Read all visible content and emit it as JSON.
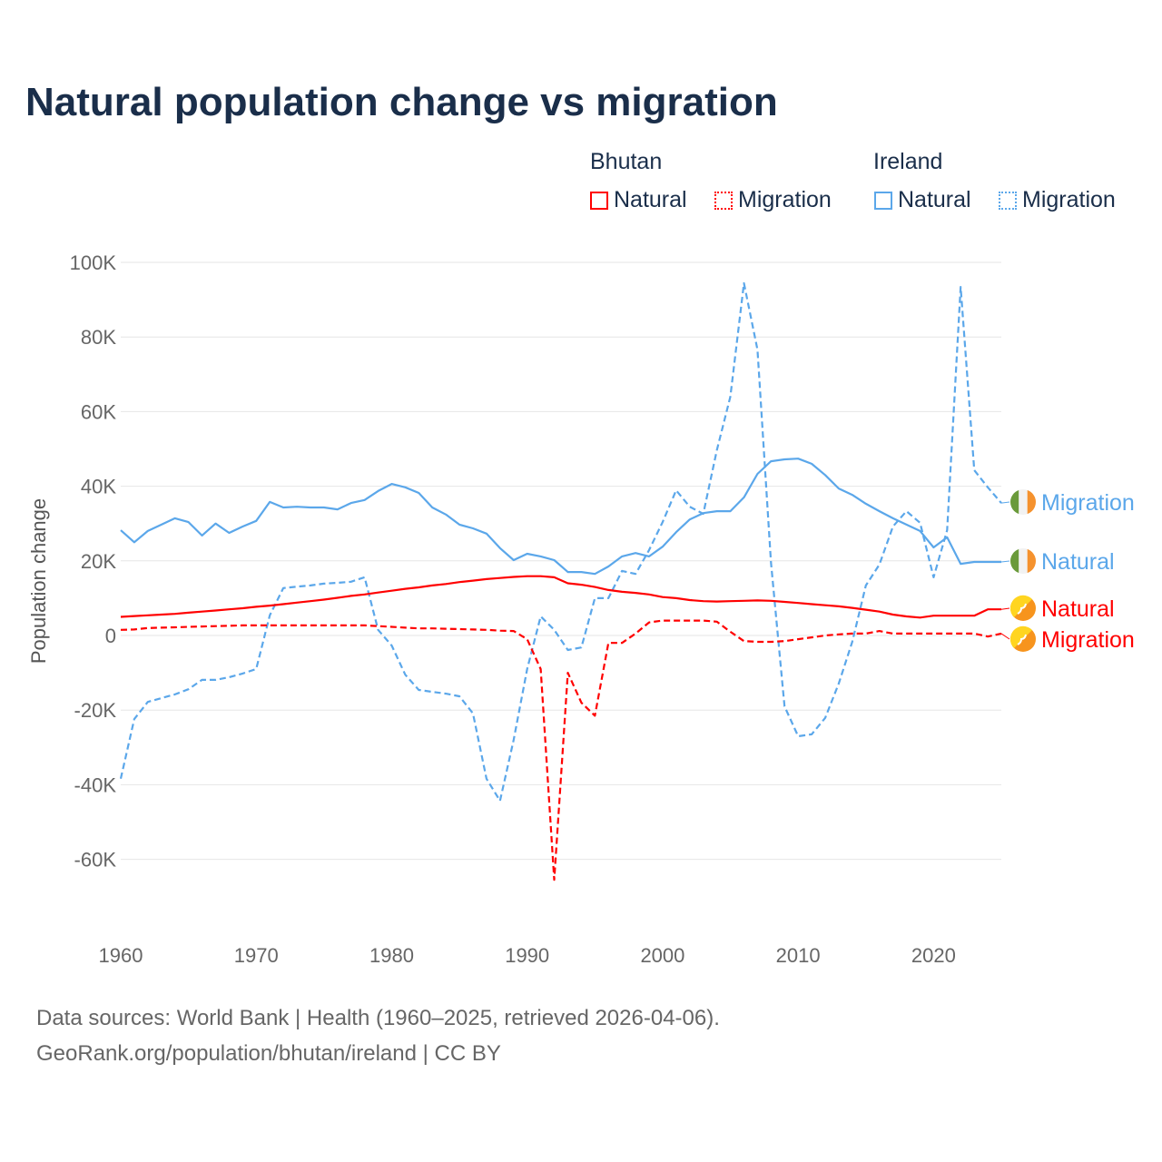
{
  "title": "Natural population change vs migration",
  "legend": {
    "groups": [
      {
        "name": "Bhutan",
        "color": "#ff0000",
        "items": [
          "Natural",
          "Migration"
        ]
      },
      {
        "name": "Ireland",
        "color": "#5ba7ea",
        "items": [
          "Natural",
          "Migration"
        ]
      }
    ]
  },
  "footer": {
    "line1": "Data sources: World Bank | Health (1960–2025, retrieved 2026-04-06).",
    "line2": "GeoRank.org/population/bhutan/ireland | CC BY"
  },
  "chart_data": {
    "type": "line",
    "title": "Natural population change vs migration",
    "xlabel": "",
    "ylabel": "Population change",
    "xlim": [
      1960,
      2025
    ],
    "ylim": [
      -60000,
      100000
    ],
    "yticks": [
      100000,
      80000,
      60000,
      40000,
      20000,
      0,
      -20000,
      -40000,
      -60000
    ],
    "ytick_labels": [
      "100K",
      "80K",
      "60K",
      "40K",
      "20K",
      "0",
      "-20K",
      "-40K",
      "-60K"
    ],
    "xticks": [
      1960,
      1970,
      1980,
      1990,
      2000,
      2010,
      2020
    ],
    "xtick_labels": [
      "1960",
      "1970",
      "1980",
      "1990",
      "2000",
      "2010",
      "2020"
    ],
    "grid": true,
    "legend_position": "top-right",
    "x_start": 1960,
    "series": [
      {
        "name": "Ireland Migration",
        "label": "Migration",
        "country": "Ireland",
        "color": "#5ba7ea",
        "dashed": true,
        "values": [
          -38400,
          -22400,
          -17800,
          -16800,
          -15800,
          -14400,
          -11900,
          -11900,
          -11200,
          -10200,
          -9000,
          5400,
          12700,
          13100,
          13400,
          13900,
          14100,
          14400,
          15600,
          1500,
          -2700,
          -10500,
          -14600,
          -15100,
          -15600,
          -16300,
          -20900,
          -38400,
          -44300,
          -28000,
          -9000,
          5100,
          1500,
          -3900,
          -3200,
          10000,
          10000,
          17300,
          16500,
          22900,
          30400,
          38900,
          34500,
          32600,
          49600,
          64000,
          94400,
          76600,
          19500,
          -19000,
          -27000,
          -26500,
          -22100,
          -12900,
          -1700,
          13400,
          19000,
          29200,
          33300,
          30200,
          15600,
          28200,
          93400,
          44300,
          39700,
          35500
        ]
      },
      {
        "name": "Ireland Natural",
        "label": "Natural",
        "country": "Ireland",
        "color": "#5ba7ea",
        "dashed": false,
        "values": [
          28200,
          25000,
          28000,
          29700,
          31400,
          30400,
          26800,
          30000,
          27500,
          29200,
          30700,
          35800,
          34300,
          34500,
          34300,
          34300,
          33800,
          35500,
          36300,
          38700,
          40600,
          39700,
          38200,
          34300,
          32400,
          29700,
          28700,
          27300,
          23400,
          20200,
          21900,
          21200,
          20200,
          17000,
          17000,
          16500,
          18500,
          21200,
          22100,
          21200,
          23800,
          27700,
          31100,
          32800,
          33300,
          33300,
          37000,
          43300,
          46700,
          47200,
          47400,
          46000,
          43000,
          39400,
          37700,
          35300,
          33300,
          31400,
          29700,
          28000,
          23600,
          26300,
          19200,
          19700,
          19700,
          19700
        ]
      },
      {
        "name": "Bhutan Natural",
        "label": "Natural",
        "country": "Bhutan",
        "color": "#ff0000",
        "dashed": false,
        "values": [
          5000,
          5200,
          5400,
          5600,
          5800,
          6100,
          6400,
          6700,
          7000,
          7300,
          7700,
          8000,
          8400,
          8800,
          9200,
          9600,
          10100,
          10600,
          11000,
          11500,
          12000,
          12500,
          12900,
          13400,
          13800,
          14300,
          14700,
          15100,
          15400,
          15700,
          15900,
          15900,
          15600,
          14000,
          13600,
          13000,
          12200,
          11700,
          11400,
          11000,
          10300,
          10000,
          9500,
          9200,
          9100,
          9200,
          9300,
          9400,
          9300,
          9000,
          8700,
          8400,
          8100,
          7800,
          7400,
          6900,
          6400,
          5600,
          5100,
          4800,
          5300,
          5300,
          5300,
          5300,
          7000,
          7000
        ]
      },
      {
        "name": "Bhutan Migration",
        "label": "Migration",
        "country": "Bhutan",
        "color": "#ff0000",
        "dashed": true,
        "values": [
          1500,
          1600,
          2000,
          2100,
          2200,
          2300,
          2400,
          2500,
          2600,
          2700,
          2700,
          2700,
          2700,
          2700,
          2700,
          2700,
          2700,
          2700,
          2700,
          2500,
          2300,
          2100,
          1900,
          1900,
          1800,
          1700,
          1600,
          1500,
          1300,
          1200,
          -1000,
          -9000,
          -65500,
          -10000,
          -18000,
          -21500,
          -2000,
          -2000,
          500,
          3500,
          4000,
          4000,
          4000,
          4000,
          3700,
          1000,
          -1500,
          -1700,
          -1700,
          -1500,
          -1000,
          -500,
          0,
          300,
          500,
          500,
          1200,
          500,
          500,
          500,
          500,
          500,
          500,
          500,
          -300,
          500
        ]
      }
    ]
  }
}
